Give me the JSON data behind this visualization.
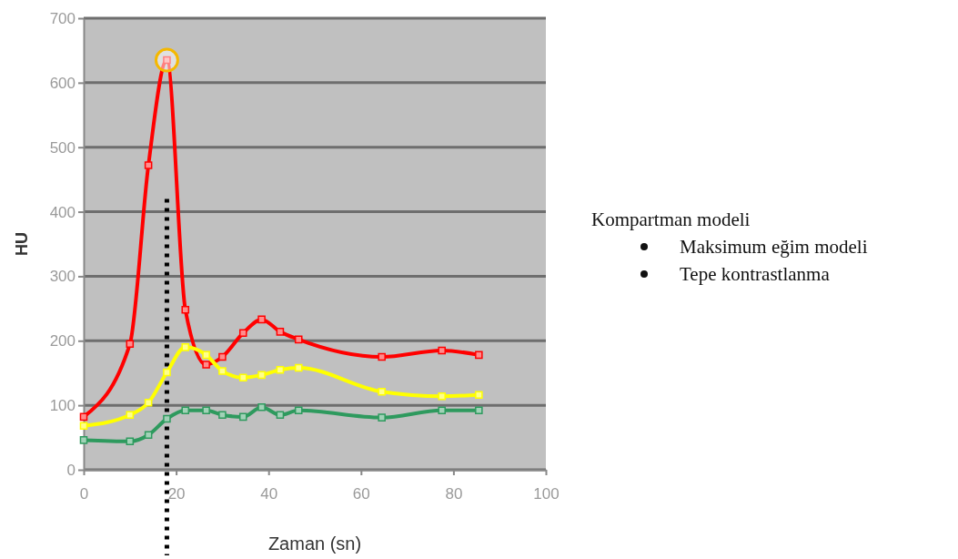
{
  "chart_data": {
    "type": "line",
    "xlabel": "Zaman (sn)",
    "ylabel": "HU",
    "x": [
      0,
      10,
      14,
      18,
      22,
      26.5,
      30,
      34.5,
      38.5,
      42.5,
      46.5,
      64.5,
      77.5,
      85.5
    ],
    "series": [
      {
        "color": "#ff0000",
        "values": [
          82,
          195,
          472,
          635,
          248,
          163,
          175,
          212,
          233,
          214,
          202,
          175,
          185,
          178
        ]
      },
      {
        "color": "#ffff00",
        "values": [
          68,
          85,
          104,
          151,
          190,
          178,
          153,
          143,
          147,
          155,
          158,
          121,
          114,
          116
        ]
      },
      {
        "color": "#2e9a5e",
        "values": [
          46,
          44,
          54,
          79,
          92,
          92,
          85,
          82,
          97,
          85,
          92,
          81,
          92,
          92
        ]
      }
    ],
    "xlim": [
      0,
      100
    ],
    "xticks": [
      0,
      20,
      40,
      60,
      80,
      100
    ],
    "ylim": [
      0,
      700
    ],
    "yticks": [
      0,
      100,
      200,
      300,
      400,
      500,
      600,
      700
    ],
    "grid": "y",
    "marker": "square",
    "line_style": "solid",
    "ref_lines": [
      {
        "axis": "x",
        "value": 18,
        "color": "#000000",
        "line_style": "dotted"
      }
    ],
    "annotations": [
      "Kompartman modeli",
      "Maksimum eğim modeli",
      "Tepe kontrastlanma"
    ]
  }
}
